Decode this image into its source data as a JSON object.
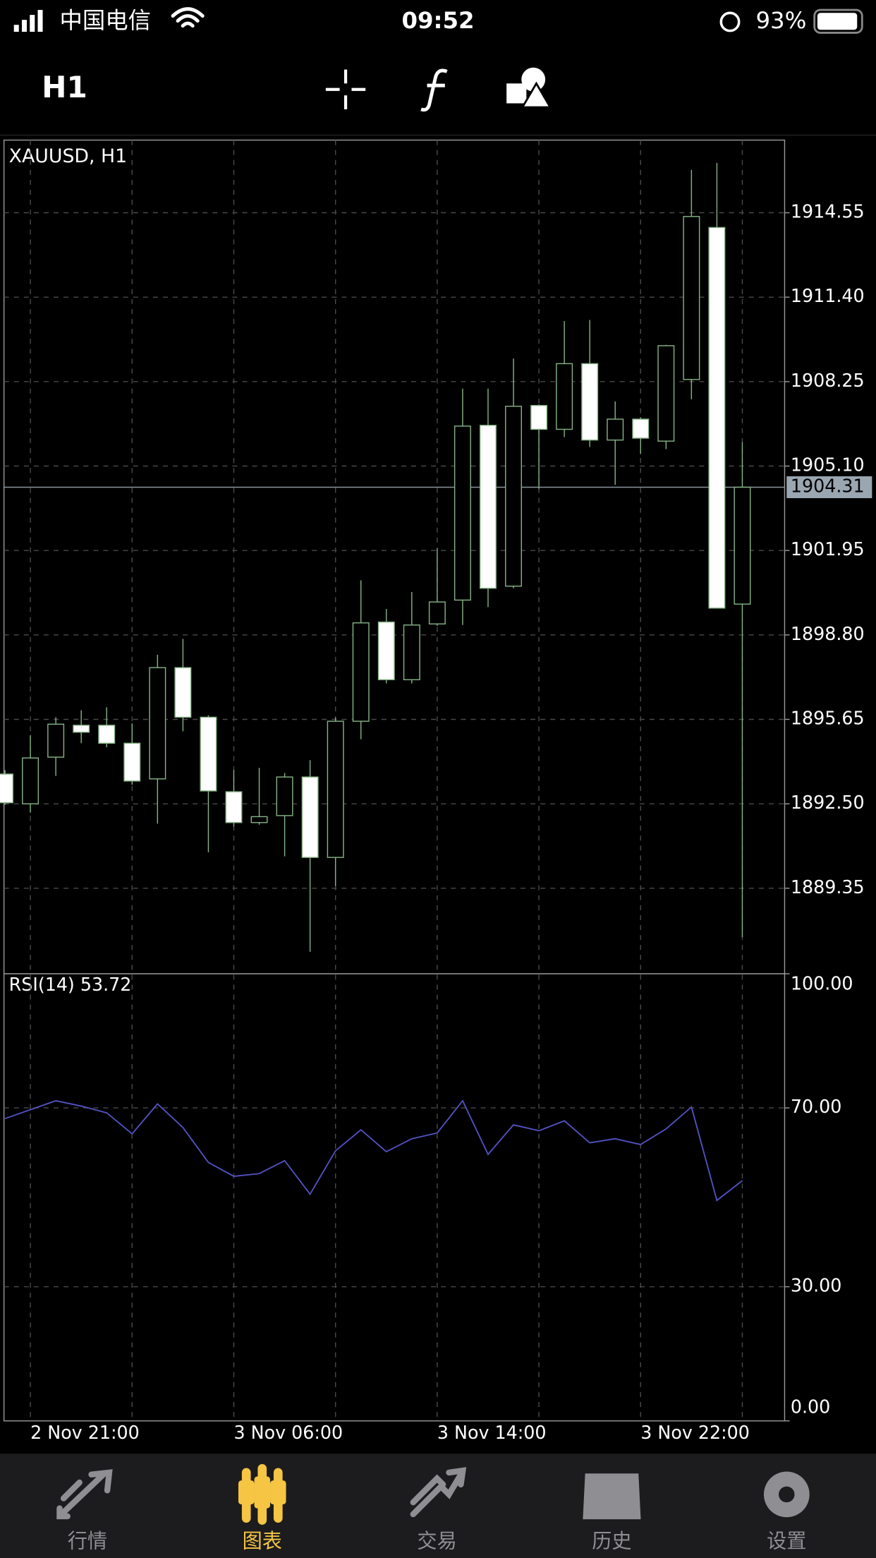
{
  "status_bar": {
    "carrier": "中国电信",
    "time": "09:52",
    "battery": "93%"
  },
  "toolbar": {
    "timeframe": "H1"
  },
  "chart_data": {
    "type": "candlestick",
    "title": "XAUUSD, H1",
    "categories": [
      null,
      "2 Nov 21:00",
      null,
      null,
      null,
      null,
      null,
      null,
      null,
      "3 Nov 06:00",
      null,
      null,
      null,
      null,
      null,
      null,
      null,
      "3 Nov 14:00",
      null,
      null,
      null,
      null,
      null,
      null,
      null,
      "3 Nov 22:00",
      null,
      null,
      null,
      null
    ],
    "open": [
      1893.61,
      1892.5,
      1894.24,
      1895.43,
      1895.43,
      1894.76,
      1893.43,
      1897.58,
      1895.73,
      1892.95,
      1891.8,
      1892.06,
      1893.5,
      1890.5,
      1895.58,
      1899.28,
      1897.13,
      1899.21,
      1900.1,
      1906.62,
      1900.62,
      1907.36,
      1906.47,
      1908.92,
      1906.07,
      1906.85,
      1906.03,
      1908.33,
      1914.0,
      1899.95
    ],
    "high": [
      1893.76,
      1895.06,
      1895.73,
      1895.99,
      1896.1,
      1895.5,
      1898.06,
      1898.65,
      1895.8,
      1893.76,
      1893.84,
      1893.65,
      1894.13,
      1895.73,
      1900.84,
      1899.77,
      1900.4,
      1902.03,
      1907.99,
      1907.99,
      1909.11,
      1907.4,
      1910.51,
      1910.55,
      1907.51,
      1906.92,
      1909.62,
      1916.15,
      1916.41,
      1905.99
    ],
    "low": [
      1892.46,
      1892.17,
      1893.54,
      1894.76,
      1894.61,
      1893.21,
      1891.76,
      1895.21,
      1890.69,
      1891.65,
      1891.72,
      1890.54,
      1886.98,
      1889.43,
      1894.91,
      1896.99,
      1896.99,
      1899.14,
      1899.17,
      1899.84,
      1900.54,
      1904.25,
      1906.18,
      1905.81,
      1904.4,
      1905.55,
      1905.73,
      1907.59,
      1899.8,
      1887.53
    ],
    "close": [
      1892.54,
      1894.21,
      1895.47,
      1895.17,
      1894.76,
      1893.35,
      1897.58,
      1895.73,
      1892.98,
      1891.8,
      1892.02,
      1893.5,
      1890.5,
      1895.58,
      1899.25,
      1897.13,
      1899.17,
      1900.03,
      1906.59,
      1900.54,
      1907.33,
      1906.47,
      1908.92,
      1906.07,
      1906.85,
      1906.14,
      1909.59,
      1914.41,
      1899.8,
      1904.31
    ],
    "current_price_label": "1904.31",
    "ylim": [
      1886.16,
      1917.26
    ],
    "yticks": [
      {
        "value": 1889.35,
        "label": "1889.35"
      },
      {
        "value": 1892.5,
        "label": "1892.50"
      },
      {
        "value": 1895.65,
        "label": "1895.65"
      },
      {
        "value": 1898.8,
        "label": "1898.80"
      },
      {
        "value": 1901.95,
        "label": "1901.95"
      },
      {
        "value": 1905.1,
        "label": "1905.10"
      },
      {
        "value": 1908.25,
        "label": "1908.25"
      },
      {
        "value": 1911.4,
        "label": "1911.40"
      },
      {
        "value": 1914.55,
        "label": "1914.55"
      }
    ],
    "grid": true,
    "colors": {
      "bull": "#000000",
      "bear": "#ffffff",
      "outline": "#86b386"
    },
    "indicator": {
      "type": "line",
      "title": "RSI(14) 53.72",
      "color": "#5353c4",
      "values": [
        67.6,
        69.6,
        71.6,
        70.4,
        68.9,
        64.2,
        70.9,
        65.6,
        57.8,
        54.7,
        55.3,
        58.2,
        50.7,
        60.4,
        65.1,
        60.2,
        63.1,
        64.4,
        71.6,
        59.6,
        66.2,
        64.9,
        67.1,
        62.2,
        63.1,
        61.8,
        65.3,
        70.2,
        49.3,
        53.72
      ],
      "ylim": [
        0,
        100
      ],
      "yticks": [
        {
          "value": 0,
          "label": "0.00"
        },
        {
          "value": 30,
          "label": "30.00"
        },
        {
          "value": 70,
          "label": "70.00"
        },
        {
          "value": 100,
          "label": "100.00"
        }
      ]
    }
  },
  "tab_bar": {
    "tabs": [
      {
        "label": "行情"
      },
      {
        "label": "图表"
      },
      {
        "label": "交易"
      },
      {
        "label": "历史"
      },
      {
        "label": "设置"
      }
    ],
    "active": 1
  }
}
